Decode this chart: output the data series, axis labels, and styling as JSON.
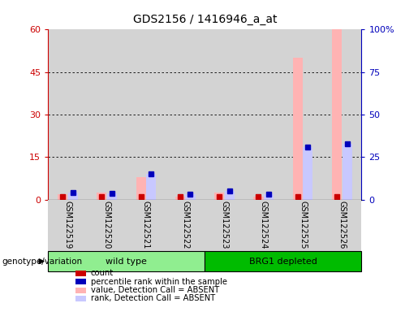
{
  "title": "GDS2156 / 1416946_a_at",
  "samples": [
    "GSM122519",
    "GSM122520",
    "GSM122521",
    "GSM122522",
    "GSM122523",
    "GSM122524",
    "GSM122525",
    "GSM122526"
  ],
  "wild_type_count": 4,
  "brg1_count": 4,
  "group_labels": [
    "wild type",
    "BRG1 depleted"
  ],
  "ylim_left": [
    0,
    60
  ],
  "ylim_right": [
    0,
    100
  ],
  "yticks_left": [
    0,
    15,
    30,
    45,
    60
  ],
  "yticks_right": [
    0,
    25,
    50,
    75,
    100
  ],
  "ytick_labels_right": [
    "0",
    "25",
    "50",
    "75",
    "100%"
  ],
  "absent_value": [
    2.0,
    2.5,
    8.0,
    1.0,
    2.5,
    1.2,
    50.0,
    60.0
  ],
  "absent_rank": [
    4.0,
    3.5,
    15.0,
    3.0,
    5.0,
    3.0,
    31.0,
    33.0
  ],
  "count_val": [
    1.0,
    1.0,
    1.0,
    1.0,
    1.0,
    1.0,
    1.0,
    1.0
  ],
  "percentile_rank": [
    4.0,
    3.5,
    15.0,
    3.0,
    5.0,
    3.0,
    31.0,
    33.0
  ],
  "color_absent_value": "#FFB3B3",
  "color_absent_rank": "#C8C8FF",
  "color_count": "#CC0000",
  "color_pct_rank": "#0000BB",
  "bg_color": "#D3D3D3",
  "group_color_wt": "#90EE90",
  "group_color_brg1": "#00BB00",
  "axis_left_color": "#CC0000",
  "axis_right_color": "#0000BB"
}
